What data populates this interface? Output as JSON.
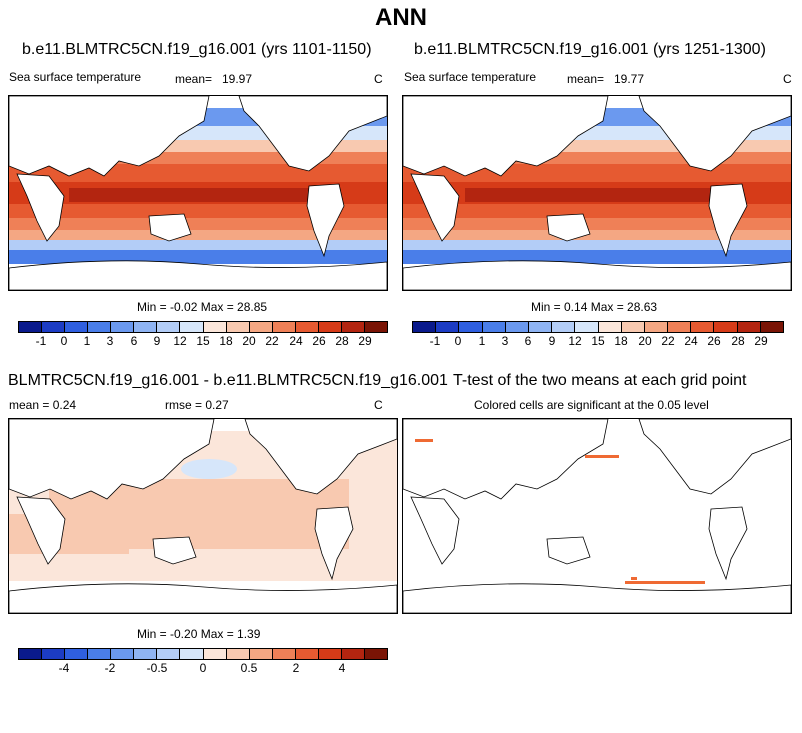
{
  "page": {
    "title": "ANN"
  },
  "panels": {
    "top_left": {
      "title": "b.e11.BLMTRC5CN.f19_g16.001 (yrs 1101-1150)",
      "variable": "Sea surface temperature",
      "mean_label": "mean=",
      "mean_value": "19.97",
      "units": "C",
      "minmax_text": "Min = -0.02 Max = 28.85"
    },
    "top_right": {
      "title": "b.e11.BLMTRC5CN.f19_g16.001 (yrs 1251-1300)",
      "variable": "Sea surface temperature",
      "mean_label": "mean=",
      "mean_value": "19.77",
      "units": "C",
      "minmax_text": "Min =  0.14 Max = 28.63"
    },
    "bottom_left": {
      "title": "BLMTRC5CN.f19_g16.001 - b.e11.BLMTRC5CN.f19_g16.001",
      "mean_text": "mean =   0.24",
      "rmse_text": "rmse =   0.27",
      "units": "C",
      "minmax_text": "Min = -0.20 Max =  1.39"
    },
    "bottom_right": {
      "title": "T-test of the two means at each grid point",
      "subtitle": "Colored cells are significant at the 0.05 level"
    }
  },
  "colorbars": {
    "sst_ticks": [
      "-1",
      "0",
      "1",
      "3",
      "6",
      "9",
      "12",
      "15",
      "18",
      "20",
      "22",
      "24",
      "26",
      "28",
      "29"
    ],
    "diff_ticks": [
      "-4",
      "-2",
      "-0.5",
      "0",
      "0.5",
      "2",
      "4"
    ],
    "colors": [
      "#0a1a8c",
      "#1c3cc4",
      "#2f5fe0",
      "#4a7ee9",
      "#6b99ef",
      "#8fb4f3",
      "#b3cdf7",
      "#d6e6fa",
      "#fbe6da",
      "#f8c9b0",
      "#f4a783",
      "#ef8057",
      "#e65a31",
      "#d63b18",
      "#b32510",
      "#7a1405"
    ],
    "significance_color": "#ef6a33"
  }
}
